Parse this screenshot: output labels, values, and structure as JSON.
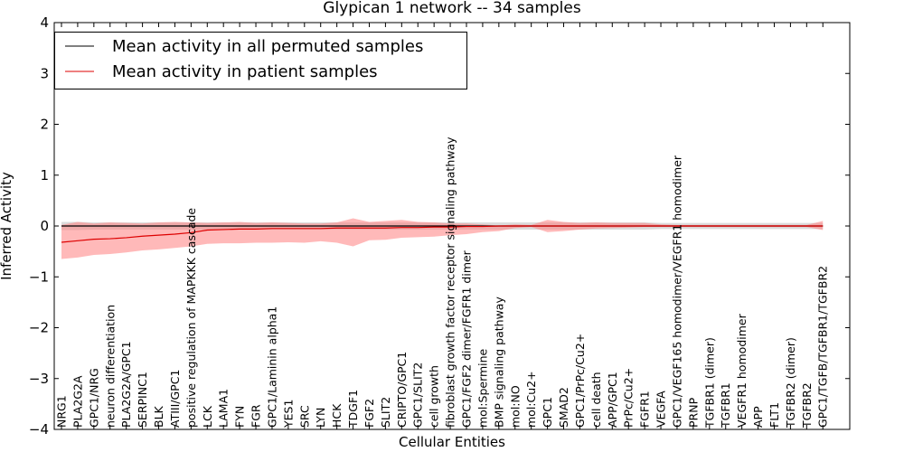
{
  "chart_data": {
    "type": "line",
    "title": "Glypican 1 network -- 34 samples",
    "xlabel": "Cellular Entities",
    "ylabel": "Inferred Activity",
    "ylim": [
      -4,
      4
    ],
    "yticks": [
      -4,
      -3,
      -2,
      -1,
      0,
      1,
      2,
      3,
      4
    ],
    "ytick_labels": [
      "−4",
      "−3",
      "−2",
      "−1",
      "0",
      "1",
      "2",
      "3",
      "4"
    ],
    "grid": false,
    "legend_position": "top-left",
    "colors": {
      "permuted_line": "#000000",
      "permuted_band": "#bdbdbd",
      "patient_line": "#dd0000",
      "patient_band": "#ff8080"
    },
    "categories": [
      "NRG1",
      "PLA2G2A",
      "GPC1/NRG",
      "neuron differentiation",
      "PLA2G2A/GPC1",
      "SERPINC1",
      "BLK",
      "ATIII/GPC1",
      "positive regulation of MAPKKK cascade",
      "LCK",
      "LAMA1",
      "FYN",
      "FGR",
      "GPC1/Laminin alpha1",
      "YES1",
      "SRC",
      "LYN",
      "HCK",
      "TDGF1",
      "FGF2",
      "SLIT2",
      "CRIPTO/GPC1",
      "GPC1/SLIT2",
      "cell growth",
      "fibroblast growth factor receptor signaling pathway",
      "GPC1/FGF2 dimer/FGFR1 dimer",
      "mol:Spermine",
      "BMP signaling pathway",
      "mol:NO",
      "mol:Cu2+",
      "GPC1",
      "SMAD2",
      "GPC1/PrPc/Cu2+",
      "cell death",
      "APP/GPC1",
      "PrPc/Cu2+",
      "FGFR1",
      "VEGFA",
      "GPC1/VEGF165 homodimer/VEGFR1 homodimer",
      "PRNP",
      "TGFBR1 (dimer)",
      "TGFBR1",
      "VEGFR1 homodimer",
      "APP",
      "FLT1",
      "TGFBR2 (dimer)",
      "TGFBR2",
      "GPC1/TGFB/TGFBR1/TGFBR2"
    ],
    "series": [
      {
        "name": "Mean activity in all permuted samples",
        "values": [
          0.0,
          0.0,
          0.0,
          0.0,
          0.0,
          0.0,
          0.0,
          0.0,
          0.0,
          0.0,
          0.0,
          0.0,
          0.0,
          0.0,
          0.0,
          0.0,
          0.0,
          0.0,
          0.0,
          0.0,
          0.0,
          0.0,
          0.0,
          0.0,
          0.0,
          0.0,
          0.0,
          0.0,
          0.0,
          0.0,
          0.0,
          0.0,
          0.0,
          0.0,
          0.0,
          0.0,
          0.0,
          0.0,
          0.0,
          0.0,
          0.0,
          0.0,
          0.0,
          0.0,
          0.0,
          0.0,
          0.0,
          0.0
        ],
        "band_upper": [
          0.08,
          0.08,
          0.07,
          0.07,
          0.07,
          0.07,
          0.07,
          0.07,
          0.07,
          0.07,
          0.07,
          0.07,
          0.07,
          0.07,
          0.07,
          0.07,
          0.07,
          0.07,
          0.07,
          0.07,
          0.07,
          0.07,
          0.07,
          0.07,
          0.07,
          0.07,
          0.07,
          0.07,
          0.07,
          0.07,
          0.07,
          0.07,
          0.07,
          0.07,
          0.07,
          0.07,
          0.07,
          0.06,
          0.06,
          0.06,
          0.06,
          0.06,
          0.06,
          0.06,
          0.06,
          0.06,
          0.06,
          0.06
        ],
        "band_lower": [
          -0.08,
          -0.08,
          -0.07,
          -0.07,
          -0.07,
          -0.07,
          -0.07,
          -0.07,
          -0.07,
          -0.07,
          -0.07,
          -0.07,
          -0.07,
          -0.07,
          -0.07,
          -0.07,
          -0.07,
          -0.07,
          -0.07,
          -0.07,
          -0.07,
          -0.07,
          -0.07,
          -0.07,
          -0.07,
          -0.07,
          -0.07,
          -0.07,
          -0.07,
          -0.07,
          -0.07,
          -0.07,
          -0.07,
          -0.07,
          -0.07,
          -0.07,
          -0.07,
          -0.06,
          -0.06,
          -0.06,
          -0.06,
          -0.06,
          -0.06,
          -0.06,
          -0.06,
          -0.06,
          -0.06,
          -0.06
        ]
      },
      {
        "name": "Mean activity in patient samples",
        "values": [
          -0.32,
          -0.29,
          -0.26,
          -0.25,
          -0.23,
          -0.2,
          -0.18,
          -0.16,
          -0.13,
          -0.08,
          -0.07,
          -0.06,
          -0.06,
          -0.05,
          -0.05,
          -0.05,
          -0.05,
          -0.04,
          -0.04,
          -0.04,
          -0.04,
          -0.03,
          -0.03,
          -0.02,
          -0.02,
          -0.01,
          -0.01,
          0.0,
          0.0,
          0.0,
          0.0,
          0.0,
          0.0,
          0.0,
          0.0,
          0.0,
          0.0,
          0.0,
          0.0,
          0.0,
          0.0,
          0.0,
          0.0,
          0.0,
          0.0,
          0.0,
          0.0,
          0.0
        ],
        "band_upper": [
          0.02,
          0.08,
          0.05,
          0.07,
          0.06,
          0.05,
          0.07,
          0.08,
          0.07,
          0.06,
          0.07,
          0.08,
          0.06,
          0.07,
          0.06,
          0.05,
          0.05,
          0.07,
          0.15,
          0.08,
          0.1,
          0.12,
          0.08,
          0.07,
          0.05,
          0.05,
          0.03,
          0.01,
          0.03,
          0.02,
          0.12,
          0.08,
          0.06,
          0.07,
          0.06,
          0.06,
          0.06,
          0.03,
          0.02,
          0.02,
          0.02,
          0.02,
          0.02,
          0.02,
          0.02,
          0.02,
          0.02,
          0.1
        ],
        "band_lower": [
          -0.65,
          -0.62,
          -0.57,
          -0.55,
          -0.52,
          -0.48,
          -0.46,
          -0.43,
          -0.4,
          -0.35,
          -0.34,
          -0.34,
          -0.33,
          -0.33,
          -0.32,
          -0.33,
          -0.3,
          -0.33,
          -0.4,
          -0.28,
          -0.27,
          -0.23,
          -0.22,
          -0.21,
          -0.18,
          -0.16,
          -0.12,
          -0.1,
          -0.04,
          -0.02,
          -0.12,
          -0.1,
          -0.07,
          -0.05,
          -0.04,
          -0.03,
          -0.02,
          -0.02,
          -0.02,
          -0.02,
          -0.02,
          -0.02,
          -0.02,
          -0.02,
          -0.02,
          -0.02,
          -0.02,
          -0.08
        ]
      }
    ]
  }
}
